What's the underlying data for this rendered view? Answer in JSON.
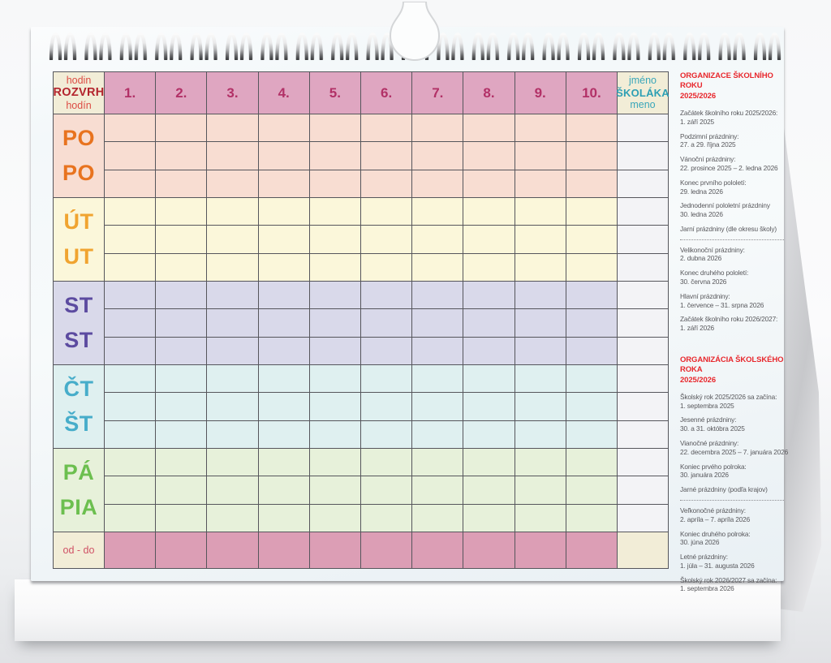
{
  "calendar": {
    "header": {
      "hours_cz": "hodin",
      "title": "ROZVRH",
      "hours_sk": "hodín",
      "periods": [
        "1.",
        "2.",
        "3.",
        "4.",
        "5.",
        "6.",
        "7.",
        "8.",
        "9.",
        "10."
      ],
      "name_cz": "jméno",
      "name_owner": "ŠKOLÁKA",
      "name_sk": "meno"
    },
    "days": [
      {
        "cz": "PO",
        "sk": "PO",
        "color": "#e8731f",
        "bg": "#f8ddd2"
      },
      {
        "cz": "ÚT",
        "sk": "UT",
        "color": "#f0a430",
        "bg": "#fbf7da"
      },
      {
        "cz": "ST",
        "sk": "ST",
        "color": "#5c4ba0",
        "bg": "#d9d9ea"
      },
      {
        "cz": "ČT",
        "sk": "ŠT",
        "color": "#47adca",
        "bg": "#dff0f0"
      },
      {
        "cz": "PÁ",
        "sk": "PIA",
        "color": "#6cbf4f",
        "bg": "#e7f1da"
      }
    ],
    "footer_label": "od - do"
  },
  "sidebar": {
    "cz": {
      "title1": "ORGANIZACE ŠKOLNÍHO ROKU",
      "title2": "2025/2026",
      "items": [
        {
          "label": "Začátek školního roku 2025/2026:",
          "value": "1. září 2025"
        },
        {
          "label": "Podzimní prázdniny:",
          "value": "27. a 29. října 2025"
        },
        {
          "label": "Vánoční prázdniny:",
          "value": "22. prosince 2025 – 2. ledna 2026"
        },
        {
          "label": "Konec prvního pololetí:",
          "value": "29. ledna 2026"
        },
        {
          "label": "Jednodenní pololetní prázdniny",
          "value": "30. ledna 2026"
        },
        {
          "label": "Jarní prázdniny (dle okresu školy)",
          "divider": true
        },
        {
          "label": "Velikonoční prázdniny:",
          "value": "2. dubna 2026"
        },
        {
          "label": "Konec druhého pololetí:",
          "value": "30. června 2026"
        },
        {
          "label": "Hlavní prázdniny:",
          "value": "1. července – 31. srpna 2026"
        },
        {
          "label": "Začátek školního roku 2026/2027:",
          "value": "1. září 2026"
        }
      ]
    },
    "sk": {
      "title1": "ORGANIZÁCIA ŠKOLSKÉHO ROKA",
      "title2": "2025/2026",
      "items": [
        {
          "label": "Školský rok 2025/2026 sa začína:",
          "value": "1. septembra 2025"
        },
        {
          "label": "Jesenné prázdniny:",
          "value": "30. a 31. októbra 2025"
        },
        {
          "label": "Vianočné prázdniny:",
          "value": "22. decembra 2025 – 7. januára 2026"
        },
        {
          "label": "Koniec prvého polroka:",
          "value": "30. januára 2026"
        },
        {
          "label": "Jarné prázdniny (podľa krajov)",
          "divider": true
        },
        {
          "label": "Veľkonočné prázdniny:",
          "value": "2. apríla – 7. apríla 2026"
        },
        {
          "label": "Koniec druhého polroka:",
          "value": "30. júna 2026"
        },
        {
          "label": "Letné prázdniny:",
          "value": "1. júla – 31. augusta 2026"
        },
        {
          "label": "Školský rok 2026/2027 sa začína:",
          "value": "1. septembra 2026"
        }
      ]
    }
  },
  "colors": {
    "header_pink": "#dfa6c1",
    "footer_pink": "#dc9eb5",
    "cream": "#f2edd7",
    "right_col": "#f3f3f6",
    "grid_line": "#56565c",
    "period_number": "#b23167",
    "rozvrh_red": "#b3242d",
    "hodin_red": "#dc4b43",
    "name_teal": "#3aa6ba",
    "sidebar_title_red": "#e8272c",
    "sidebar_text": "#58585c",
    "od_do_red": "#d05165"
  }
}
